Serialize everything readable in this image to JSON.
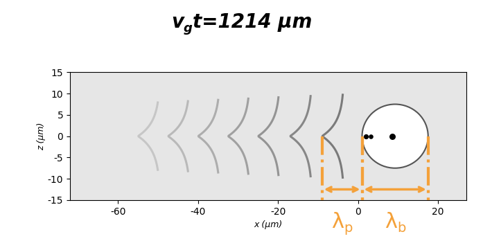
{
  "chart_data": {
    "type": "image",
    "title": "vgt=1214 μm",
    "x_label": "x (μm)",
    "y_label": "z (μm)",
    "xlim": [
      -72,
      27
    ],
    "ylim": [
      -15,
      15
    ],
    "xticks": [
      -60,
      -40,
      -20,
      0,
      20
    ],
    "yticks": [
      -15,
      -10,
      -5,
      0,
      5,
      10,
      15
    ],
    "annotations": [
      {
        "text": "λp",
        "x": [
          -9,
          1
        ],
        "color": "#f4a13a"
      },
      {
        "text": "λb",
        "x": [
          1,
          17.5
        ],
        "color": "#f4a13a"
      }
    ]
  }
}
